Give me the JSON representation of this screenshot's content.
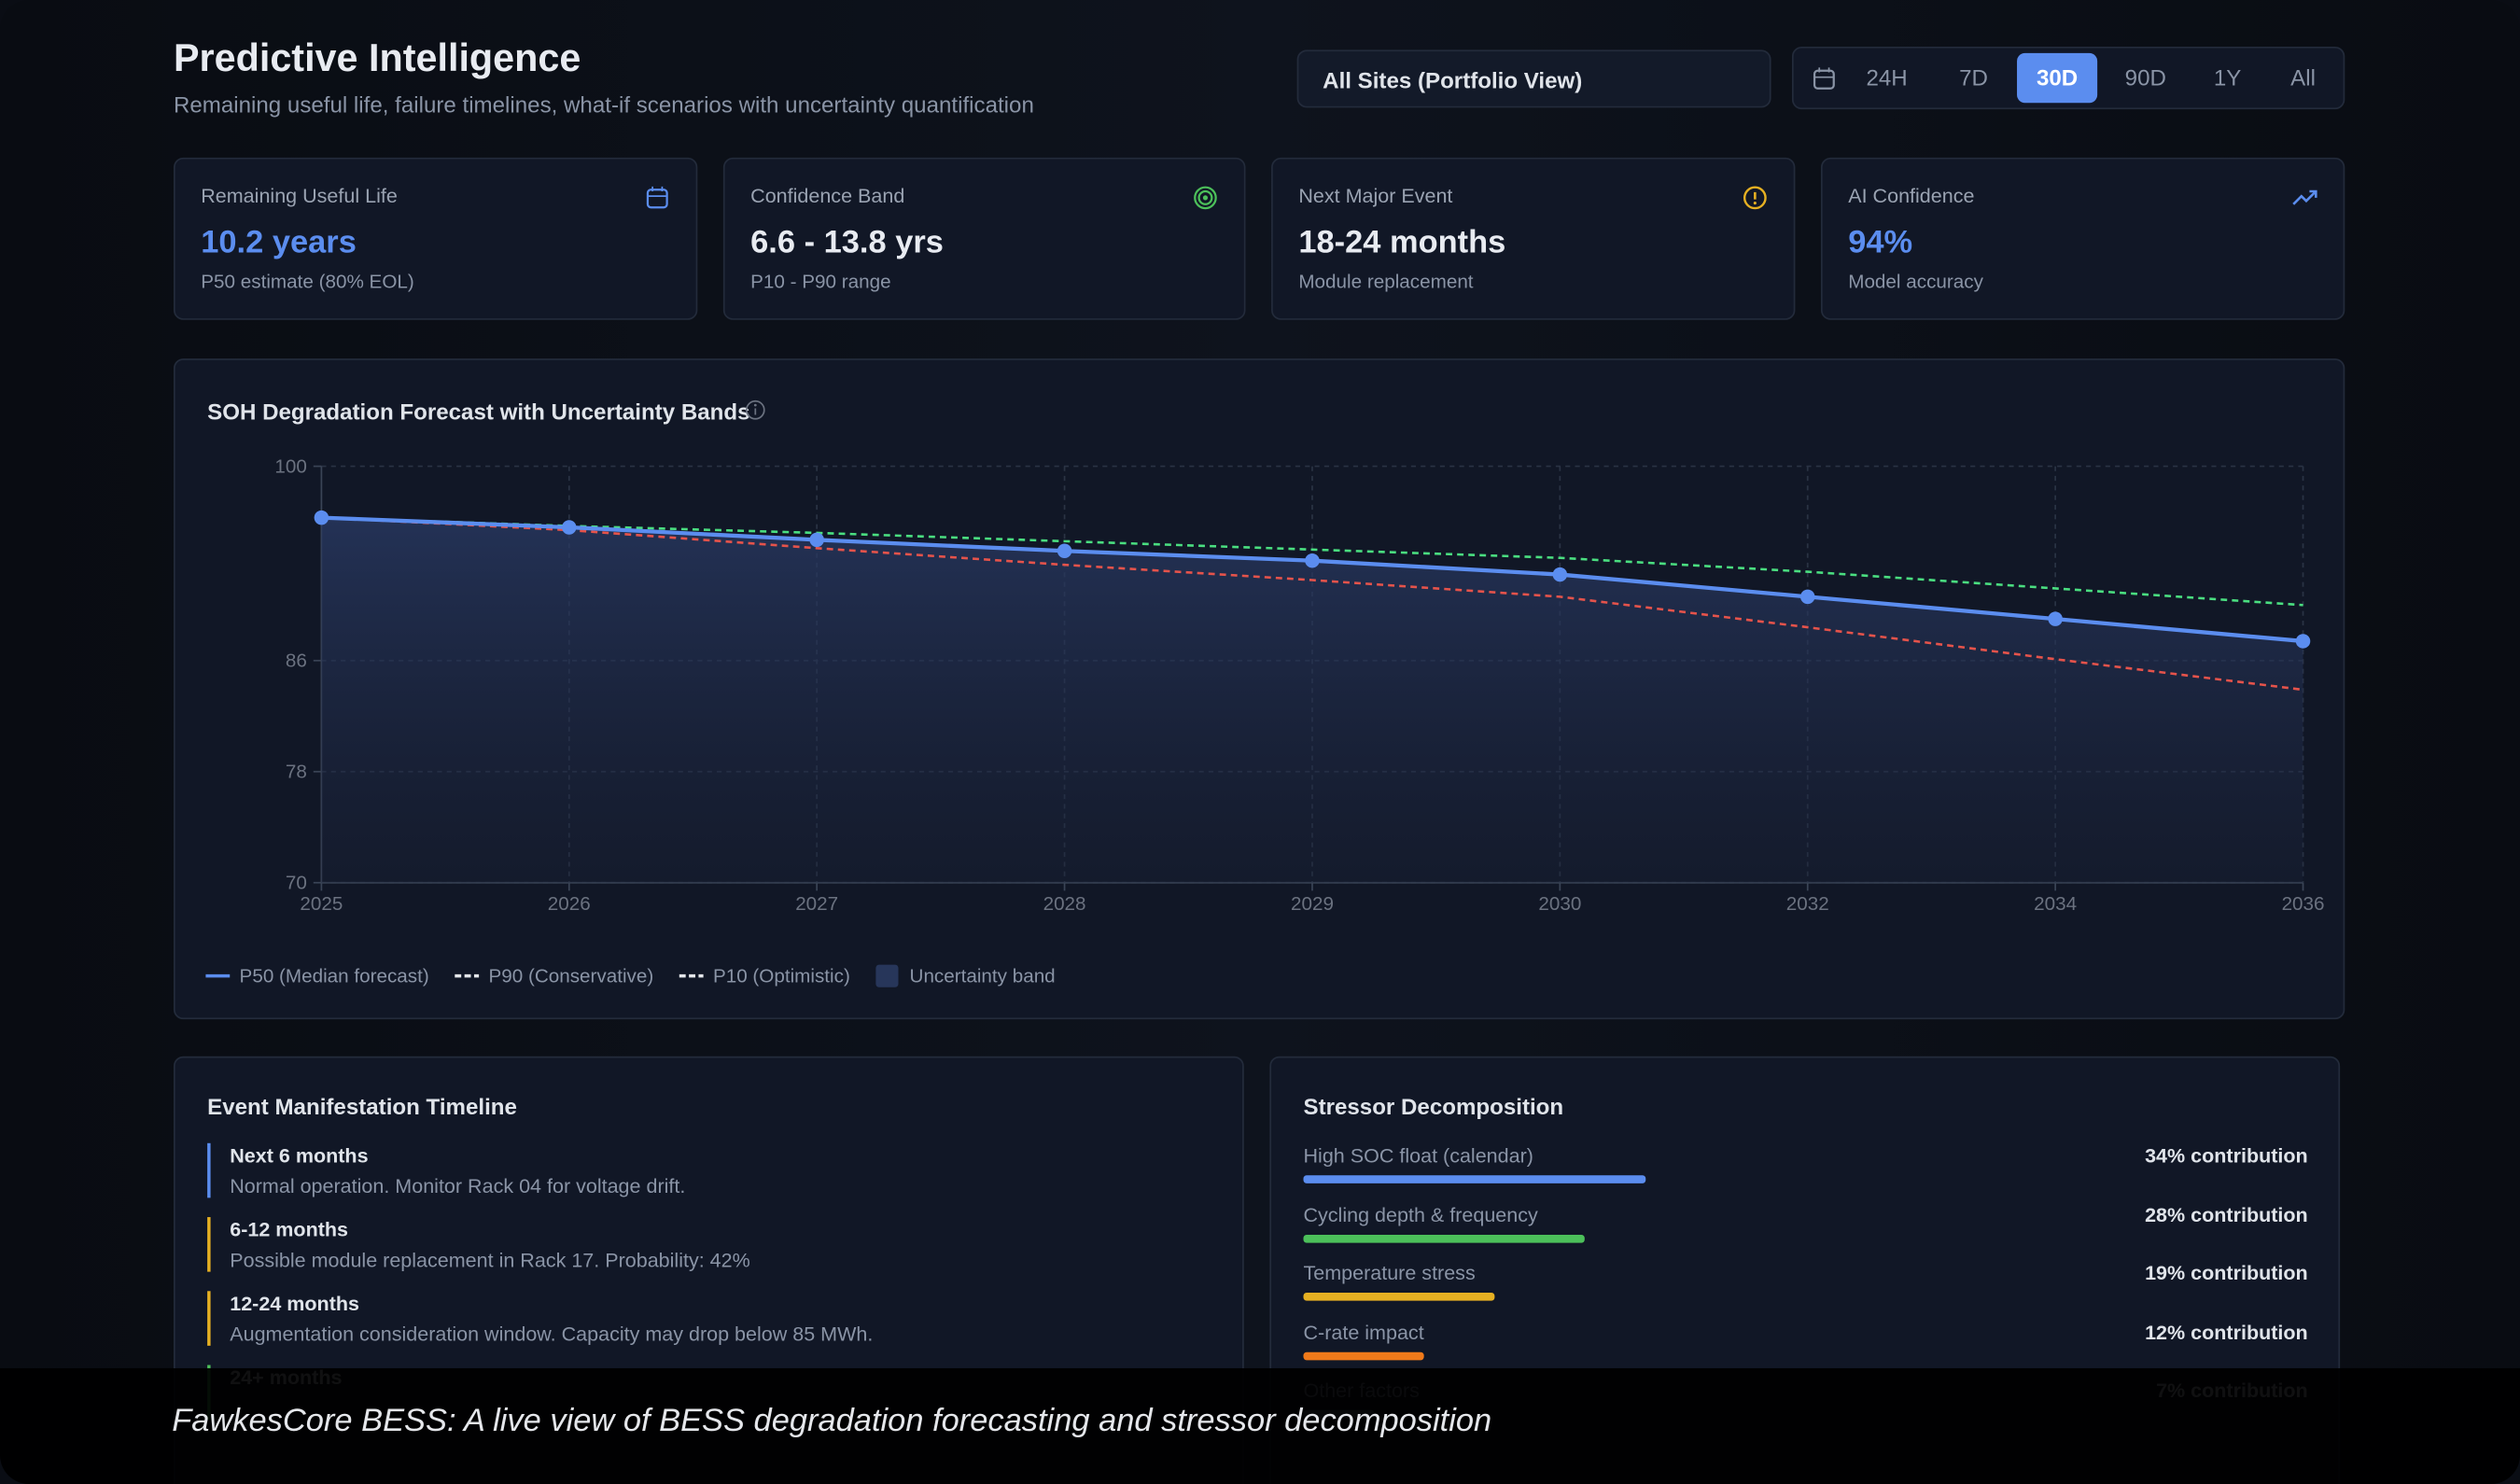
{
  "header": {
    "title": "Predictive Intelligence",
    "subtitle": "Remaining useful life, failure timelines, what-if scenarios with uncertainty quantification"
  },
  "site_selector": "All Sites (Portfolio View)",
  "time_ranges": {
    "options": [
      "24H",
      "7D",
      "30D",
      "90D",
      "1Y",
      "All"
    ],
    "active": "30D"
  },
  "kpis": [
    {
      "label": "Remaining Useful Life",
      "value": "10.2 years",
      "sub": "P50 estimate (80% EOL)"
    },
    {
      "label": "Confidence Band",
      "value": "6.6 - 13.8 yrs",
      "sub": "P10 - P90 range"
    },
    {
      "label": "Next Major Event",
      "value": "18-24 months",
      "sub": "Module replacement"
    },
    {
      "label": "AI Confidence",
      "value": "94%",
      "sub": "Model accuracy"
    }
  ],
  "chart_data": {
    "type": "line",
    "title": "SOH Degradation Forecast with Uncertainty Bands",
    "categories": [
      "2025",
      "2026",
      "2027",
      "2028",
      "2029",
      "2030",
      "2032",
      "2034",
      "2036"
    ],
    "series": [
      {
        "name": "P50 (Median forecast)",
        "color": "#5b8def",
        "values": [
          96.3,
          95.6,
          94.7,
          93.9,
          93.2,
          92.2,
          90.6,
          89.0,
          87.4
        ]
      },
      {
        "name": "P90 (Conservative)",
        "color": "#e5534b",
        "values": [
          96.3,
          95.4,
          94.1,
          92.9,
          91.8,
          90.6,
          88.4,
          86.1,
          83.9
        ]
      },
      {
        "name": "P10 (Optimistic)",
        "color": "#4ade80",
        "values": [
          96.3,
          95.7,
          95.2,
          94.6,
          94.0,
          93.4,
          92.4,
          91.2,
          90.0
        ]
      }
    ],
    "band_label": "Uncertainty band",
    "ylim": [
      70,
      100
    ],
    "yticks": [
      70,
      78,
      86,
      100
    ],
    "grid": true
  },
  "timeline": {
    "title": "Event Manifestation Timeline",
    "events": [
      {
        "period": "Next 6 months",
        "text": "Normal operation. Monitor Rack 04 for voltage drift.",
        "color": "#5b8def"
      },
      {
        "period": "6-12 months",
        "text": "Possible module replacement in Rack 17. Probability: 42%",
        "color": "#e6b022"
      },
      {
        "period": "12-24 months",
        "text": "Augmentation consideration window. Capacity may drop below 85 MWh.",
        "color": "#e6b022"
      },
      {
        "period": "24+ months",
        "color": "#4cc05a"
      }
    ]
  },
  "stressors": {
    "title": "Stressor Decomposition",
    "xlim": [
      0,
      100
    ],
    "items": [
      {
        "name": "High SOC float (calendar)",
        "value": 34,
        "value_label": "34% contribution",
        "color": "#5b8def"
      },
      {
        "name": "Cycling depth & frequency",
        "value": 28,
        "value_label": "28% contribution",
        "color": "#4cc05a"
      },
      {
        "name": "Temperature stress",
        "value": 19,
        "value_label": "19% contribution",
        "color": "#e6b022"
      },
      {
        "name": "C-rate impact",
        "value": 12,
        "value_label": "12% contribution",
        "color": "#f07a1a"
      },
      {
        "name": "Other factors",
        "value": 7,
        "value_label": "7% contribution",
        "color": "#6b7280"
      }
    ]
  },
  "caption": "FawkesCore BESS: A live view of BESS degradation forecasting and stressor decomposition"
}
